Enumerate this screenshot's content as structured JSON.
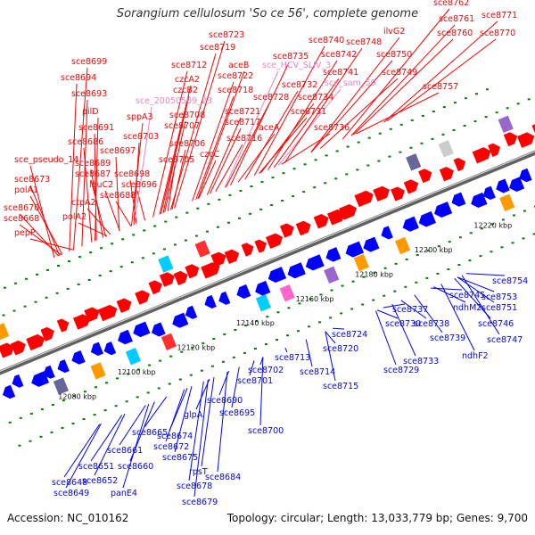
{
  "title": "Sorangium cellulosum 'So ce 56', complete genome",
  "footer": {
    "accession": "Accession: NC_010162",
    "summary": "Topology: circular; Length: 13,033,779 bp; Genes: 9,700"
  },
  "colors": {
    "forward": "#ff0000",
    "reverse": "#0000ff",
    "special": "#f080c0",
    "axis": "#909090",
    "dots": "#008000"
  },
  "scale": [
    "12080 kbp",
    "12100 kbp",
    "12120 kbp",
    "12140 kbp",
    "12160 kbp",
    "12180 kbp",
    "12200 kbp",
    "12220 kbp"
  ],
  "top_labels": [
    "sce8699",
    "sce8694",
    "sce8693",
    "pilD",
    "sce8691",
    "sce8686",
    "sce_pseudo_14",
    "sce8673",
    "polA1",
    "sce8670",
    "sce8668",
    "pepP",
    "sce8689",
    "sce8687",
    "leuC2",
    "sce8688",
    "ctpA2",
    "polA2",
    "sppA3",
    "sce8703",
    "sce8697",
    "sce8698",
    "sce8696",
    "sce_20050509_23",
    "sce8712",
    "czcA2",
    "czcB2",
    "sce8708",
    "sce8707",
    "sce8706",
    "sce8705",
    "czcC",
    "sce8723",
    "sce8719",
    "aceB",
    "sce8722",
    "sce8718",
    "sce8721",
    "sce8717",
    "sce8716",
    "aceA",
    "sce_HCV_SLIV_3",
    "sce8735",
    "sce8740",
    "sce8742",
    "sce8741",
    "sce_sam_59",
    "sce8732",
    "sce8734",
    "sce8728",
    "sce8731",
    "sce8736",
    "sce8748",
    "ilvG2",
    "sce8750",
    "sce8749",
    "sce8757",
    "sce8762",
    "sce8761",
    "sce8760",
    "sce8771",
    "sce8770"
  ],
  "bottom_labels": [
    "sce8648",
    "sce8649",
    "sce8651",
    "sce8652",
    "panE4",
    "sce8660",
    "sce8661",
    "sce8665",
    "sce8674",
    "sce8672",
    "sce8675",
    "rpsT",
    "sce8678",
    "sce8679",
    "sce8684",
    "glpA",
    "sce8690",
    "sce8695",
    "sce8700",
    "sce8701",
    "sce8702",
    "sce8713",
    "sce8714",
    "sce8715",
    "sce8720",
    "sce8724",
    "sce8729",
    "sce8730",
    "sce8733",
    "sce8737",
    "sce8738",
    "sce8739",
    "ndhM2",
    "sce8745",
    "sce8746",
    "sce8747",
    "ndhF2",
    "sce8751",
    "sce8753",
    "sce8754"
  ]
}
